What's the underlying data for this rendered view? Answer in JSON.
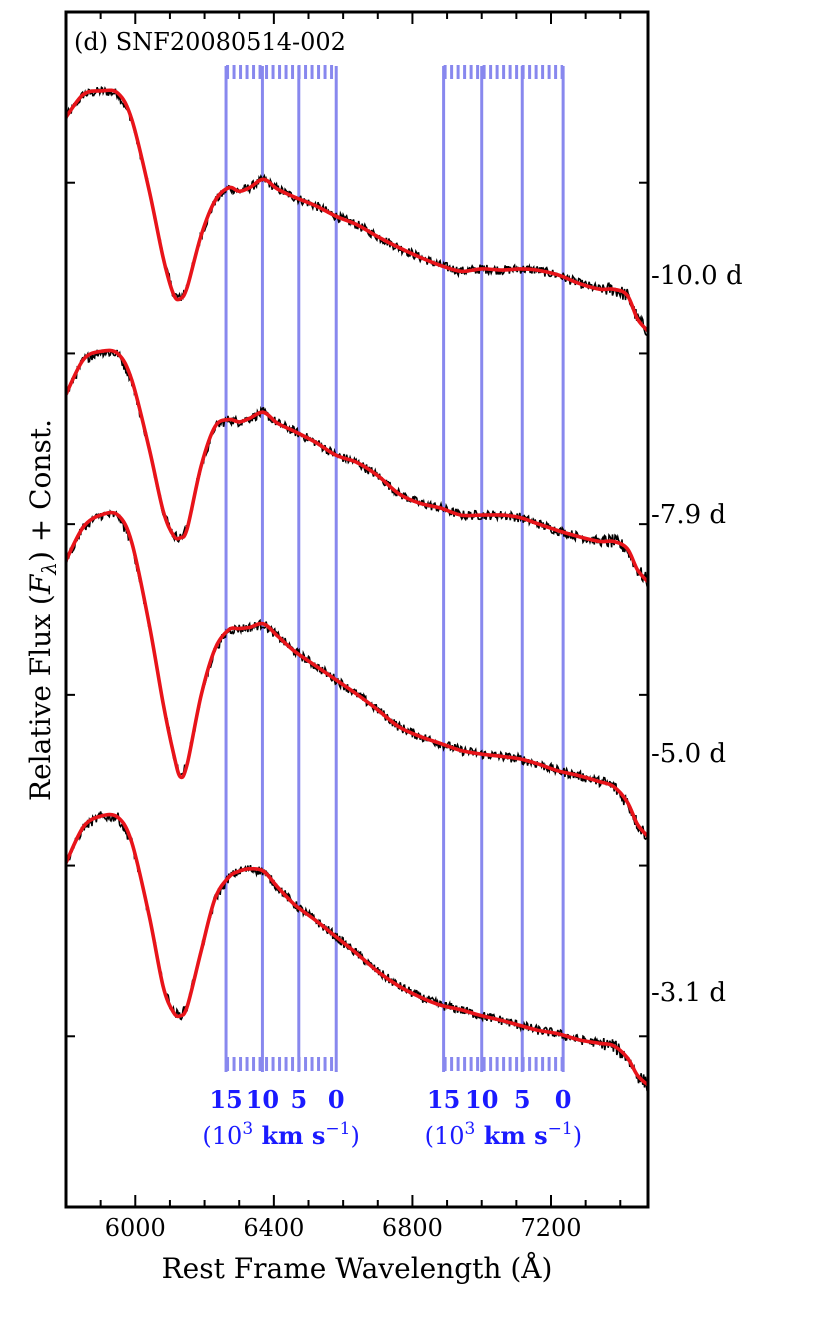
{
  "chart_data": {
    "type": "line",
    "panel_title": "(d) SNF20080514-002",
    "xlabel": "Rest Frame Wavelength (Å)",
    "ylabel_parts": [
      "Relative Flux (",
      "F",
      "λ",
      ") + Const."
    ],
    "xlim": [
      5800,
      7480
    ],
    "xticks": [
      6000,
      6400,
      6800,
      7200
    ],
    "ylim": [
      0,
      1
    ],
    "grid": false,
    "series_colors": {
      "observed": "#000000",
      "smoothed": "#e8141a",
      "velocity_lines": "#8888ee",
      "velocity_text": "#1a1aff"
    },
    "velocity_scales": [
      {
        "tick_labels": [
          "15",
          "10",
          "5",
          "0"
        ],
        "tick_values_kms": [
          15000,
          10000,
          5000,
          0
        ],
        "line_wavelengths": [
          6262,
          6367,
          6472,
          6580
        ],
        "hatch_start": 6262,
        "hatch_end": 6580,
        "unit_parts": [
          "(10",
          "3",
          " km s",
          "−1",
          ")"
        ]
      },
      {
        "tick_labels": [
          "15",
          "10",
          "5",
          "0"
        ],
        "tick_values_kms": [
          15000,
          10000,
          5000,
          0
        ],
        "line_wavelengths": [
          6890,
          7000,
          7117,
          7235
        ],
        "hatch_start": 6890,
        "hatch_end": 7235,
        "unit_parts": [
          "(10",
          "3",
          " km s",
          "−1",
          ")"
        ]
      }
    ],
    "spectra": [
      {
        "label": "-10.0 d",
        "offset": 0.76,
        "points": [
          [
            5800,
            0.152
          ],
          [
            5850,
            0.171
          ],
          [
            5900,
            0.174
          ],
          [
            5950,
            0.172
          ],
          [
            5990,
            0.15
          ],
          [
            6040,
            0.091
          ],
          [
            6080,
            0.035
          ],
          [
            6110,
            0.004
          ],
          [
            6130,
            0.0
          ],
          [
            6150,
            0.01
          ],
          [
            6190,
            0.053
          ],
          [
            6230,
            0.082
          ],
          [
            6270,
            0.093
          ],
          [
            6300,
            0.09
          ],
          [
            6330,
            0.093
          ],
          [
            6370,
            0.1
          ],
          [
            6410,
            0.092
          ],
          [
            6460,
            0.085
          ],
          [
            6520,
            0.078
          ],
          [
            6580,
            0.069
          ],
          [
            6640,
            0.062
          ],
          [
            6700,
            0.052
          ],
          [
            6760,
            0.043
          ],
          [
            6820,
            0.035
          ],
          [
            6880,
            0.028
          ],
          [
            6940,
            0.023
          ],
          [
            7000,
            0.025
          ],
          [
            7060,
            0.024
          ],
          [
            7110,
            0.025
          ],
          [
            7160,
            0.024
          ],
          [
            7220,
            0.02
          ],
          [
            7280,
            0.013
          ],
          [
            7340,
            0.008
          ],
          [
            7380,
            0.008
          ],
          [
            7420,
            0.003
          ],
          [
            7450,
            -0.017
          ],
          [
            7480,
            -0.027
          ]
        ]
      },
      {
        "label": "-7.9 d",
        "offset": 0.56,
        "points": [
          [
            5800,
            0.12
          ],
          [
            5850,
            0.149
          ],
          [
            5900,
            0.156
          ],
          [
            5950,
            0.154
          ],
          [
            5990,
            0.132
          ],
          [
            6040,
            0.075
          ],
          [
            6080,
            0.023
          ],
          [
            6110,
            0.002
          ],
          [
            6130,
            0.0
          ],
          [
            6150,
            0.008
          ],
          [
            6190,
            0.06
          ],
          [
            6230,
            0.093
          ],
          [
            6270,
            0.099
          ],
          [
            6300,
            0.097
          ],
          [
            6330,
            0.1
          ],
          [
            6370,
            0.105
          ],
          [
            6410,
            0.096
          ],
          [
            6460,
            0.089
          ],
          [
            6520,
            0.08
          ],
          [
            6580,
            0.069
          ],
          [
            6640,
            0.063
          ],
          [
            6700,
            0.052
          ],
          [
            6760,
            0.037
          ],
          [
            6820,
            0.029
          ],
          [
            6880,
            0.025
          ],
          [
            6940,
            0.019
          ],
          [
            7000,
            0.019
          ],
          [
            7060,
            0.019
          ],
          [
            7110,
            0.017
          ],
          [
            7160,
            0.012
          ],
          [
            7220,
            0.006
          ],
          [
            7280,
            0.001
          ],
          [
            7340,
            -0.003
          ],
          [
            7380,
            -0.003
          ],
          [
            7420,
            -0.009
          ],
          [
            7450,
            -0.027
          ],
          [
            7480,
            -0.037
          ]
        ]
      },
      {
        "label": "-5.0 d",
        "offset": 0.36,
        "points": [
          [
            5800,
            0.181
          ],
          [
            5850,
            0.209
          ],
          [
            5900,
            0.219
          ],
          [
            5950,
            0.219
          ],
          [
            5990,
            0.196
          ],
          [
            6040,
            0.128
          ],
          [
            6080,
            0.062
          ],
          [
            6110,
            0.02
          ],
          [
            6130,
            0.0
          ],
          [
            6150,
            0.011
          ],
          [
            6190,
            0.068
          ],
          [
            6230,
            0.107
          ],
          [
            6270,
            0.123
          ],
          [
            6300,
            0.124
          ],
          [
            6330,
            0.125
          ],
          [
            6370,
            0.128
          ],
          [
            6410,
            0.118
          ],
          [
            6460,
            0.105
          ],
          [
            6520,
            0.093
          ],
          [
            6580,
            0.081
          ],
          [
            6640,
            0.069
          ],
          [
            6700,
            0.056
          ],
          [
            6760,
            0.042
          ],
          [
            6820,
            0.034
          ],
          [
            6880,
            0.028
          ],
          [
            6940,
            0.022
          ],
          [
            7000,
            0.019
          ],
          [
            7060,
            0.017
          ],
          [
            7110,
            0.015
          ],
          [
            7160,
            0.011
          ],
          [
            7220,
            0.005
          ],
          [
            7280,
            0.001
          ],
          [
            7340,
            -0.004
          ],
          [
            7380,
            -0.008
          ],
          [
            7420,
            -0.021
          ],
          [
            7450,
            -0.04
          ],
          [
            7480,
            -0.05
          ]
        ]
      },
      {
        "label": "-3.1 d",
        "offset": 0.16,
        "points": [
          [
            5800,
            0.128
          ],
          [
            5850,
            0.158
          ],
          [
            5900,
            0.167
          ],
          [
            5950,
            0.166
          ],
          [
            5990,
            0.145
          ],
          [
            6040,
            0.084
          ],
          [
            6080,
            0.025
          ],
          [
            6110,
            0.003
          ],
          [
            6130,
            0.0
          ],
          [
            6150,
            0.008
          ],
          [
            6190,
            0.054
          ],
          [
            6230,
            0.098
          ],
          [
            6270,
            0.116
          ],
          [
            6300,
            0.121
          ],
          [
            6330,
            0.123
          ],
          [
            6370,
            0.121
          ],
          [
            6410,
            0.108
          ],
          [
            6460,
            0.093
          ],
          [
            6520,
            0.08
          ],
          [
            6580,
            0.066
          ],
          [
            6640,
            0.052
          ],
          [
            6700,
            0.037
          ],
          [
            6760,
            0.025
          ],
          [
            6820,
            0.016
          ],
          [
            6880,
            0.009
          ],
          [
            6940,
            0.005
          ],
          [
            7000,
            0.0
          ],
          [
            7060,
            -0.004
          ],
          [
            7110,
            -0.008
          ],
          [
            7160,
            -0.012
          ],
          [
            7220,
            -0.015
          ],
          [
            7280,
            -0.02
          ],
          [
            7340,
            -0.023
          ],
          [
            7380,
            -0.025
          ],
          [
            7420,
            -0.035
          ],
          [
            7450,
            -0.05
          ],
          [
            7480,
            -0.058
          ]
        ]
      }
    ]
  }
}
